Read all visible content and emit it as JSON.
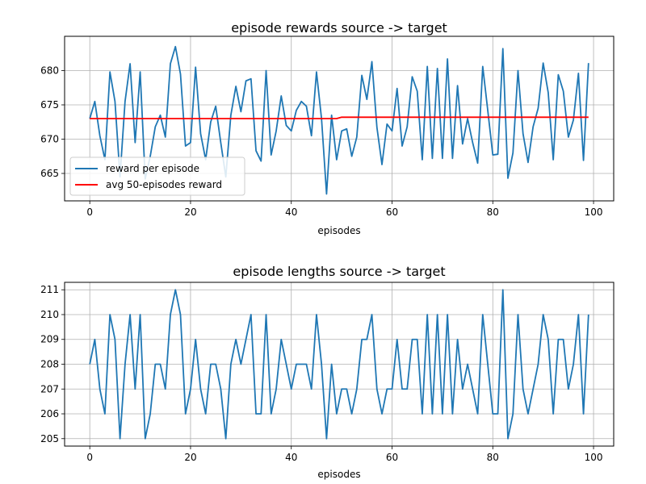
{
  "chart_data": [
    {
      "type": "line",
      "title": "episode rewards source -> target",
      "xlabel": "episodes",
      "ylabel": "",
      "xlim": [
        -5,
        104
      ],
      "ylim": [
        661,
        685
      ],
      "xticks": [
        0,
        20,
        40,
        60,
        80,
        100
      ],
      "yticks": [
        665,
        670,
        675,
        680
      ],
      "grid": true,
      "legend": "lower-left",
      "series": [
        {
          "name": "reward per episode",
          "color": "#1f77b4",
          "x": [
            0,
            1,
            2,
            3,
            4,
            5,
            6,
            7,
            8,
            9,
            10,
            11,
            12,
            13,
            14,
            15,
            16,
            17,
            18,
            19,
            20,
            21,
            22,
            23,
            24,
            25,
            26,
            27,
            28,
            29,
            30,
            31,
            32,
            33,
            34,
            35,
            36,
            37,
            38,
            39,
            40,
            41,
            42,
            43,
            44,
            45,
            46,
            47,
            48,
            49,
            50,
            51,
            52,
            53,
            54,
            55,
            56,
            57,
            58,
            59,
            60,
            61,
            62,
            63,
            64,
            65,
            66,
            67,
            68,
            69,
            70,
            71,
            72,
            73,
            74,
            75,
            76,
            77,
            78,
            79,
            80,
            81,
            82,
            83,
            84,
            85,
            86,
            87,
            88,
            89,
            90,
            91,
            92,
            93,
            94,
            95,
            96,
            97,
            98,
            99
          ],
          "y": [
            673.0,
            675.5,
            670.5,
            667.0,
            679.8,
            675.5,
            664.5,
            675.5,
            681.0,
            669.5,
            679.8,
            664.2,
            667.5,
            671.8,
            673.5,
            670.3,
            681.0,
            683.5,
            679.5,
            669.0,
            669.5,
            680.5,
            670.8,
            667.0,
            672.5,
            674.8,
            669.5,
            664.5,
            673.5,
            677.7,
            674.0,
            678.5,
            678.8,
            668.3,
            666.8,
            680.0,
            667.7,
            671.2,
            676.3,
            672.0,
            671.2,
            674.2,
            675.5,
            674.8,
            670.5,
            679.8,
            673.0,
            662.0,
            673.5,
            667.0,
            671.2,
            671.5,
            667.5,
            670.3,
            679.3,
            675.8,
            681.3,
            671.7,
            666.3,
            672.2,
            671.2,
            677.4,
            669.0,
            671.8,
            679.1,
            677.0,
            667.0,
            680.6,
            667.2,
            680.3,
            667.2,
            681.7,
            667.2,
            677.8,
            669.3,
            673.0,
            669.5,
            666.5,
            680.6,
            674.2,
            667.7,
            667.8,
            683.2,
            664.3,
            668.0,
            680.0,
            670.8,
            666.6,
            671.8,
            674.5,
            681.1,
            676.8,
            667.0,
            679.4,
            677.0,
            670.3,
            672.8,
            679.6,
            666.9,
            681.1
          ]
        },
        {
          "name": "avg 50-episodes reward",
          "color": "#ff0000",
          "x": [
            0,
            49,
            50,
            51,
            99
          ],
          "y": [
            673.0,
            673.0,
            673.2,
            673.2,
            673.2
          ]
        }
      ]
    },
    {
      "type": "line",
      "title": "episode lengths source -> target",
      "xlabel": "episodes",
      "ylabel": "",
      "xlim": [
        -5,
        104
      ],
      "ylim": [
        204.7,
        211.3
      ],
      "xticks": [
        0,
        20,
        40,
        60,
        80,
        100
      ],
      "yticks": [
        205,
        206,
        207,
        208,
        209,
        210,
        211
      ],
      "grid": true,
      "series": [
        {
          "color": "#1f77b4",
          "x": [
            0,
            1,
            2,
            3,
            4,
            5,
            6,
            7,
            8,
            9,
            10,
            11,
            12,
            13,
            14,
            15,
            16,
            17,
            18,
            19,
            20,
            21,
            22,
            23,
            24,
            25,
            26,
            27,
            28,
            29,
            30,
            31,
            32,
            33,
            34,
            35,
            36,
            37,
            38,
            39,
            40,
            41,
            42,
            43,
            44,
            45,
            46,
            47,
            48,
            49,
            50,
            51,
            52,
            53,
            54,
            55,
            56,
            57,
            58,
            59,
            60,
            61,
            62,
            63,
            64,
            65,
            66,
            67,
            68,
            69,
            70,
            71,
            72,
            73,
            74,
            75,
            76,
            77,
            78,
            79,
            80,
            81,
            82,
            83,
            84,
            85,
            86,
            87,
            88,
            89,
            90,
            91,
            92,
            93,
            94,
            95,
            96,
            97,
            98,
            99
          ],
          "y": [
            208,
            209,
            207,
            206,
            210,
            209,
            205,
            208,
            210,
            207,
            210,
            205,
            206,
            208,
            208,
            207,
            210,
            211,
            210,
            206,
            207,
            209,
            207,
            206,
            208,
            208,
            207,
            205,
            208,
            209,
            208,
            209,
            210,
            206,
            206,
            210,
            206,
            207,
            209,
            208,
            207,
            208,
            208,
            208,
            207,
            210,
            208,
            205,
            208,
            206,
            207,
            207,
            206,
            207,
            209,
            209,
            210,
            207,
            206,
            207,
            207,
            209,
            207,
            207,
            209,
            209,
            206,
            210,
            206,
            210,
            206,
            210,
            206,
            209,
            207,
            208,
            207,
            206,
            210,
            208,
            206,
            206,
            211,
            205,
            206,
            210,
            207,
            206,
            207,
            208,
            210,
            209,
            206,
            209,
            209,
            207,
            208,
            210,
            206,
            210
          ]
        }
      ]
    }
  ]
}
